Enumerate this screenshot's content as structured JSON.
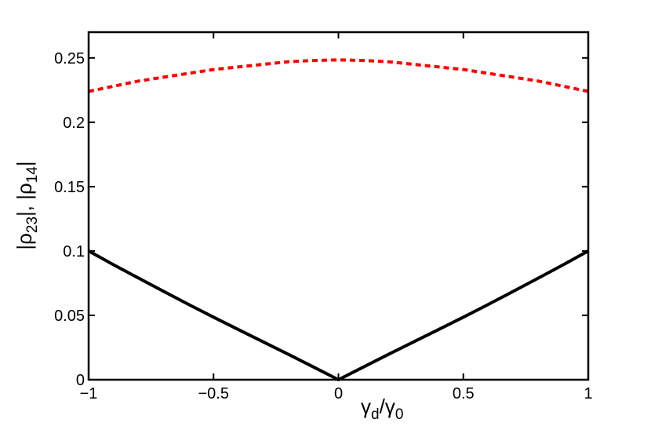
{
  "chart_data": {
    "type": "line",
    "xlabel": "γd/γ0",
    "ylabel": "|ρ23|, |ρ14|",
    "xlim": [
      -1,
      1
    ],
    "ylim": [
      0,
      0.27
    ],
    "xticks": [
      -1,
      -0.5,
      0,
      0.5,
      1
    ],
    "xtick_labels": [
      "−1",
      "−0.5",
      "0",
      "0.5",
      "1"
    ],
    "yticks": [
      0,
      0.05,
      0.1,
      0.15,
      0.2,
      0.25
    ],
    "ytick_labels": [
      "0",
      "0.05",
      "0.1",
      "0.15",
      "0.2",
      "0.25"
    ],
    "grid": false,
    "series": [
      {
        "color": "#ff0000",
        "style": "dotted",
        "x": [
          -1,
          -0.9,
          -0.8,
          -0.7,
          -0.6,
          -0.5,
          -0.4,
          -0.3,
          -0.2,
          -0.1,
          0,
          0.1,
          0.2,
          0.3,
          0.4,
          0.5,
          0.6,
          0.7,
          0.8,
          0.9,
          1
        ],
        "y": [
          0.224,
          0.228,
          0.232,
          0.235,
          0.238,
          0.241,
          0.243,
          0.245,
          0.247,
          0.248,
          0.2485,
          0.248,
          0.247,
          0.245,
          0.243,
          0.241,
          0.238,
          0.235,
          0.232,
          0.228,
          0.224
        ]
      },
      {
        "color": "#000000",
        "style": "solid",
        "x": [
          -1,
          -0.9,
          -0.8,
          -0.7,
          -0.6,
          -0.5,
          -0.4,
          -0.3,
          -0.2,
          -0.1,
          0,
          0.1,
          0.2,
          0.3,
          0.4,
          0.5,
          0.6,
          0.7,
          0.8,
          0.9,
          1
        ],
        "y": [
          0.1,
          0.0893,
          0.0789,
          0.0686,
          0.0585,
          0.0486,
          0.0389,
          0.0293,
          0.0197,
          0.0099,
          0,
          0.0099,
          0.0197,
          0.0293,
          0.0389,
          0.0486,
          0.0585,
          0.0686,
          0.0789,
          0.0893,
          0.1
        ]
      }
    ]
  }
}
